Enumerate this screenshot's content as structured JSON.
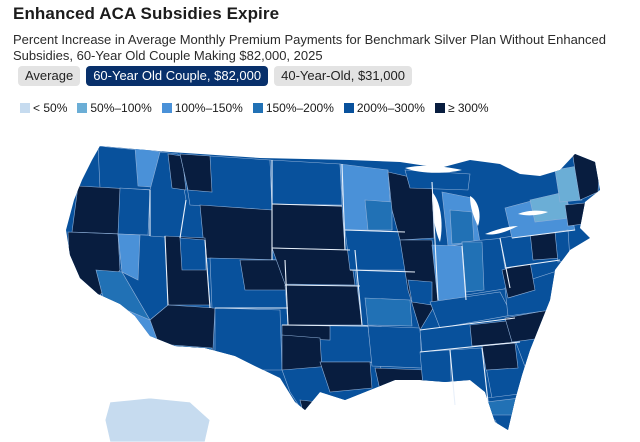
{
  "title": "Enhanced ACA Subsidies Expire",
  "subtitle": "Percent Increase in Average Monthly Premium Payments for Benchmark Silver Plan Without Enhanced Subsidies, 60-Year Old Couple Making $82,000, 2025",
  "tabs": [
    {
      "label": "Average",
      "active": false
    },
    {
      "label": "60-Year Old Couple, $82,000",
      "active": true
    },
    {
      "label": "40-Year-Old, $31,000",
      "active": false
    }
  ],
  "legend": [
    {
      "label": "< 50%",
      "color": "#c6dbef"
    },
    {
      "label": "50%–100%",
      "color": "#6baed6"
    },
    {
      "label": "100%–150%",
      "color": "#4a91d8"
    },
    {
      "label": "150%–200%",
      "color": "#2171b5"
    },
    {
      "label": "200%–300%",
      "color": "#08519c"
    },
    {
      "label": "≥ 300%",
      "color": "#081d3f"
    }
  ],
  "map": {
    "type": "choropleth",
    "region": "United States",
    "units": "rating areas",
    "border_color": "#8fb0d8",
    "state_border_color": "#e8f0fa"
  }
}
